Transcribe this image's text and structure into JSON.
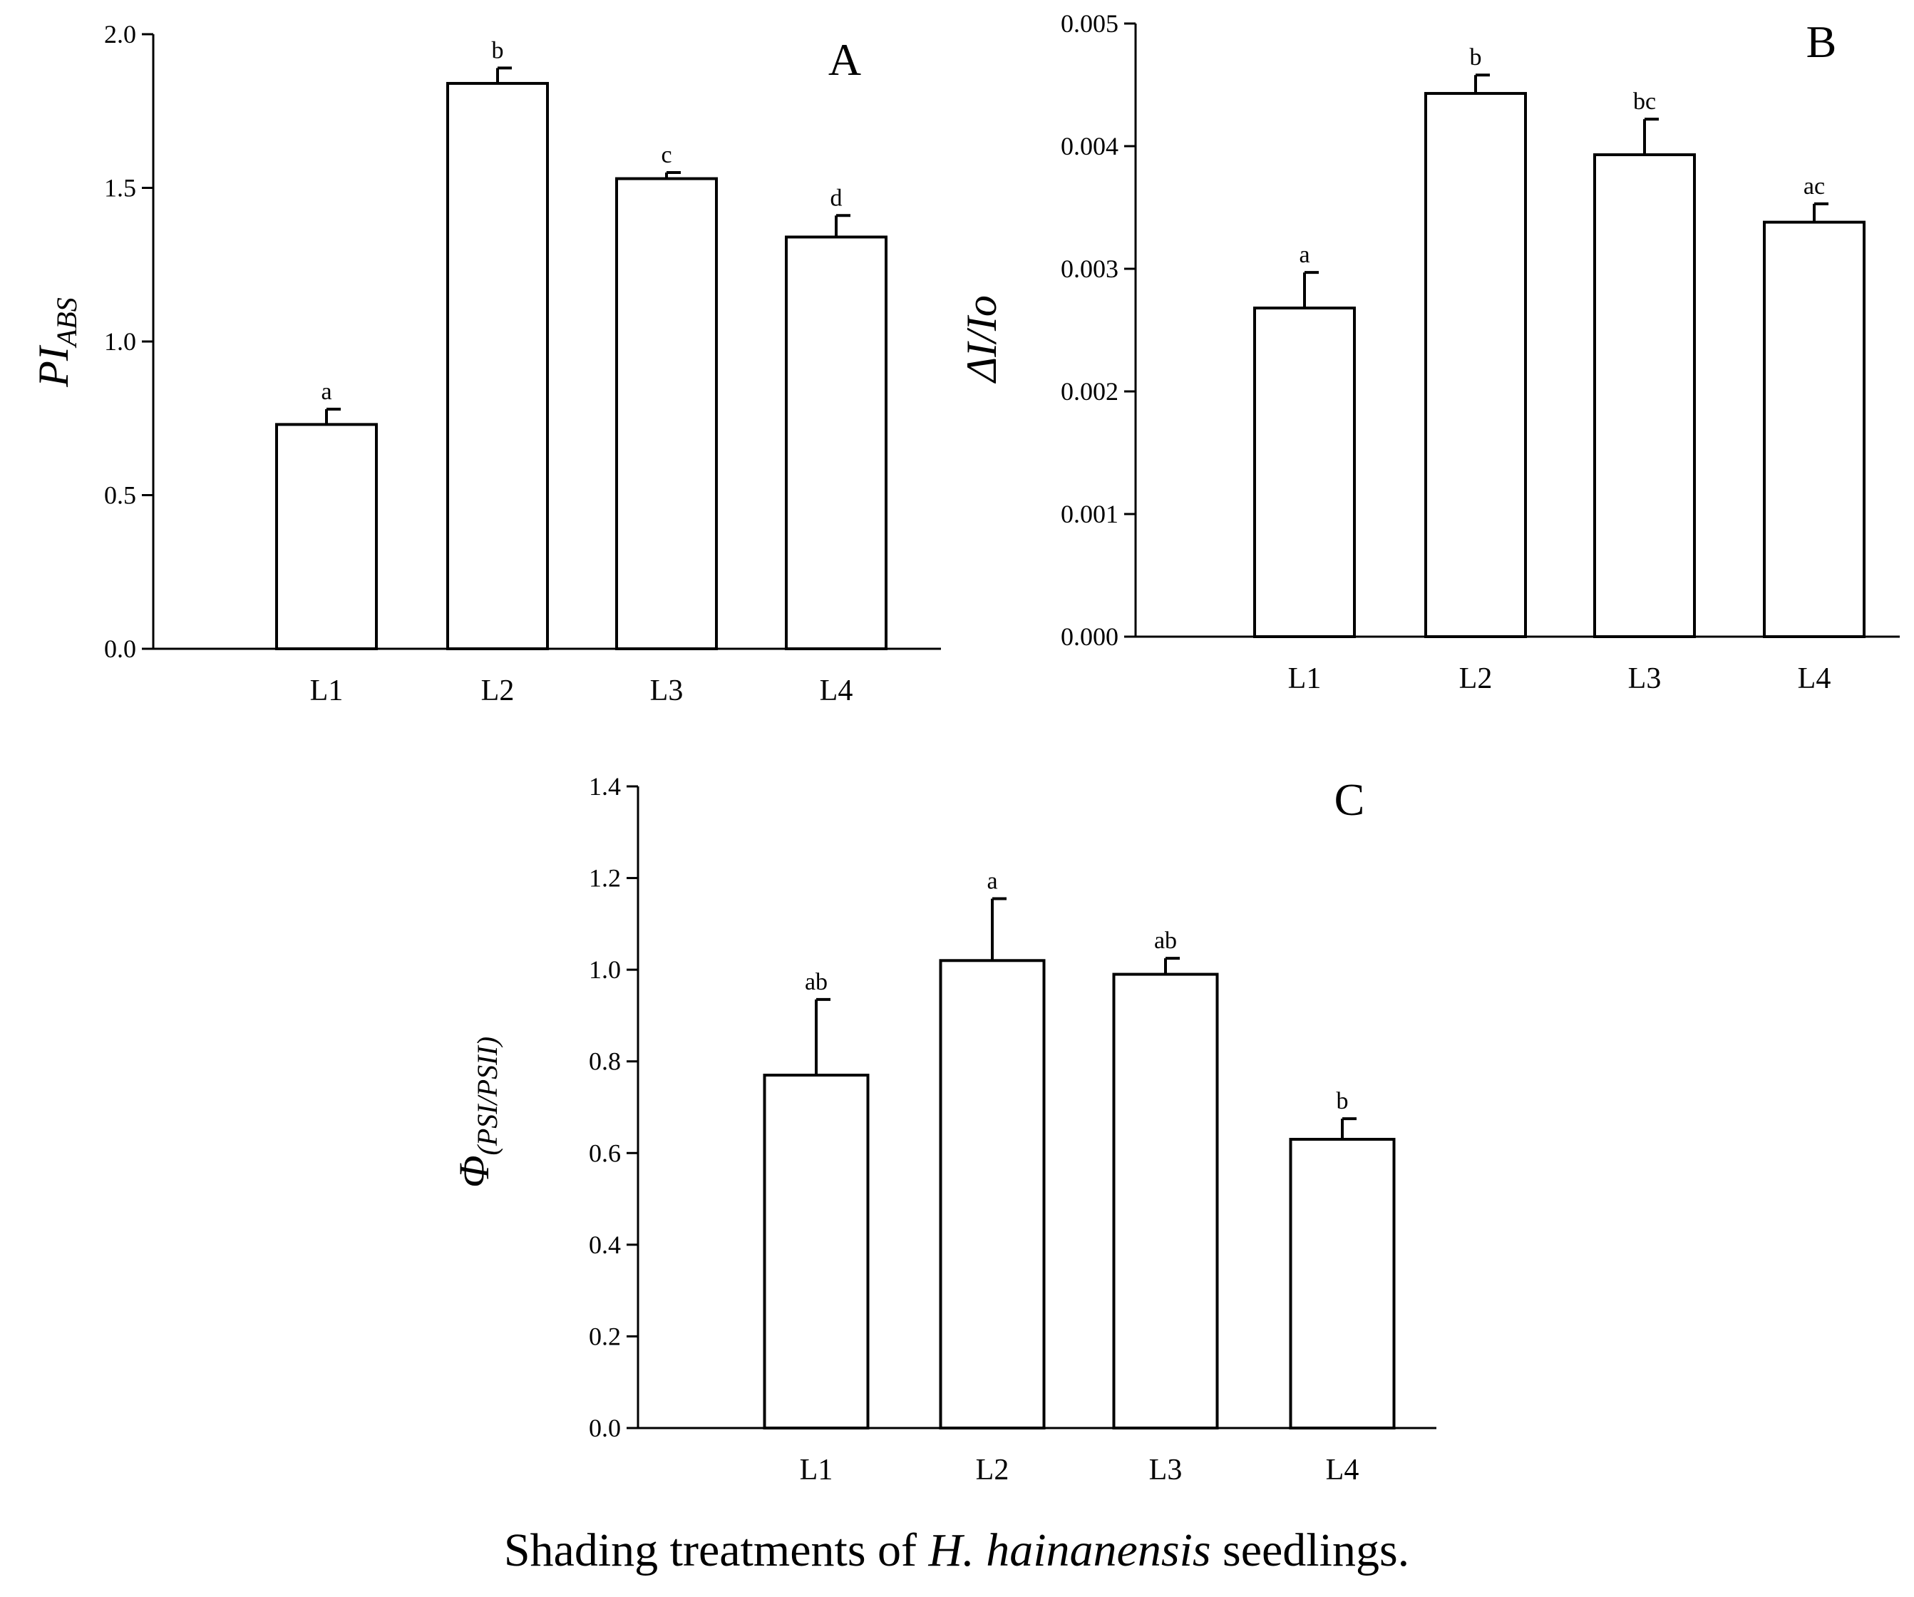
{
  "chart_data": [
    {
      "type": "bar",
      "panel": "A",
      "ylabel": "PI",
      "ylabel_sub": "ABS",
      "categories": [
        "L1",
        "L2",
        "L3",
        "L4"
      ],
      "values": [
        0.73,
        1.84,
        1.53,
        1.34
      ],
      "errors": [
        0.05,
        0.05,
        0.02,
        0.07
      ],
      "significance": [
        "a",
        "b",
        "c",
        "d"
      ],
      "ylim": [
        0,
        2.0
      ],
      "yticks": [
        "0.0",
        "0.5",
        "1.0",
        "1.5",
        "2.0"
      ]
    },
    {
      "type": "bar",
      "panel": "B",
      "ylabel": "ΔI/Io",
      "ylabel_sub": "",
      "categories": [
        "L1",
        "L2",
        "L3",
        "L4"
      ],
      "values": [
        0.00268,
        0.00443,
        0.00393,
        0.00338
      ],
      "errors": [
        0.00029,
        0.00015,
        0.00029,
        0.00015
      ],
      "significance": [
        "a",
        "b",
        "bc",
        "ac"
      ],
      "ylim": [
        0,
        0.005
      ],
      "yticks": [
        "0.000",
        "0.001",
        "0.002",
        "0.003",
        "0.004",
        "0.005"
      ]
    },
    {
      "type": "bar",
      "panel": "C",
      "ylabel": "Φ",
      "ylabel_sub": "(PSI/PSII)",
      "categories": [
        "L1",
        "L2",
        "L3",
        "L4"
      ],
      "values": [
        0.77,
        1.02,
        0.99,
        0.63
      ],
      "errors": [
        0.165,
        0.135,
        0.035,
        0.045
      ],
      "significance": [
        "ab",
        "a",
        "ab",
        "b"
      ],
      "ylim": [
        0,
        1.4
      ],
      "yticks": [
        "0.0",
        "0.2",
        "0.4",
        "0.6",
        "0.8",
        "1.0",
        "1.2",
        "1.4"
      ]
    }
  ],
  "caption": {
    "before": "Shading treatments of ",
    "species": "H. hainanensis",
    "after": " seedlings."
  }
}
